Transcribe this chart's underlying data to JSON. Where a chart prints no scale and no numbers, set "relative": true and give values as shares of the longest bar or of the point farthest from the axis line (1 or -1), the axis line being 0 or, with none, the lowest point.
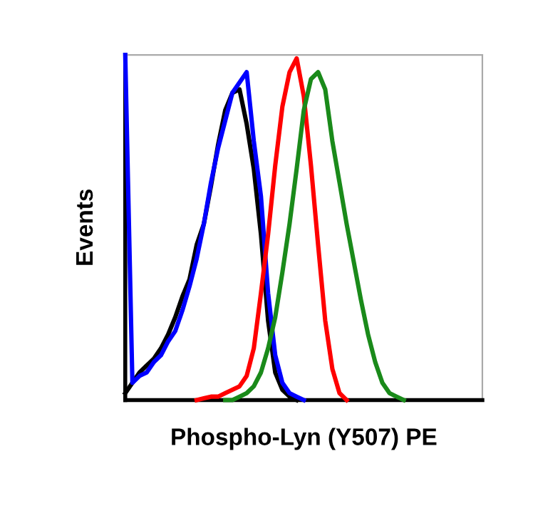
{
  "chart_data": {
    "type": "line",
    "relative": true,
    "xlabel": "Phospho-Lyn (Y507) PE",
    "ylabel": "Events",
    "marker": "none",
    "line_style": "solid",
    "categories": [
      null,
      null,
      null,
      null,
      null,
      null,
      null,
      null,
      null,
      null,
      null,
      null,
      null,
      null,
      null,
      null,
      null,
      null,
      null,
      null,
      null,
      null,
      null,
      null,
      null,
      null,
      null,
      null,
      null,
      null,
      null,
      null,
      null,
      null,
      null,
      null,
      null,
      null,
      null,
      null,
      null,
      null,
      null,
      null,
      null,
      null,
      null,
      null,
      null,
      null,
      null
    ],
    "series": [
      {
        "color": "#000000",
        "values": [
          0.02,
          0.05,
          0.08,
          0.1,
          0.12,
          0.15,
          0.19,
          0.24,
          0.3,
          0.35,
          0.45,
          0.51,
          0.62,
          0.74,
          0.84,
          0.89,
          0.9,
          0.8,
          0.67,
          0.48,
          0.23,
          0.08,
          0.03,
          0.01,
          0,
          null,
          null,
          null,
          null,
          null,
          null,
          null,
          null,
          null,
          null,
          null,
          null,
          null,
          null,
          null,
          null,
          null,
          null,
          null,
          null,
          null,
          null,
          null,
          null,
          null,
          null
        ]
      },
      {
        "color": "#0000ff",
        "values": [
          1.0,
          0.05,
          0.07,
          0.08,
          0.11,
          0.13,
          0.17,
          0.2,
          0.26,
          0.33,
          0.41,
          0.51,
          0.63,
          0.73,
          0.81,
          0.89,
          0.92,
          0.95,
          0.75,
          0.59,
          0.31,
          0.13,
          0.05,
          0.02,
          0.01,
          0,
          null,
          null,
          null,
          null,
          null,
          null,
          null,
          null,
          null,
          null,
          null,
          null,
          null,
          null,
          null,
          null,
          null,
          null,
          null,
          null,
          null,
          null,
          null,
          null,
          null
        ]
      },
      {
        "color": "#ff0000",
        "values": [
          null,
          null,
          null,
          null,
          null,
          null,
          null,
          null,
          null,
          null,
          0,
          0.005,
          0.01,
          0.01,
          0.02,
          0.03,
          0.04,
          0.07,
          0.15,
          0.31,
          0.48,
          0.68,
          0.85,
          0.95,
          0.99,
          0.88,
          0.68,
          0.45,
          0.23,
          0.09,
          0.02,
          0,
          null,
          null,
          null,
          null,
          null,
          null,
          null,
          null,
          null,
          null,
          null,
          null,
          null,
          null,
          null,
          null,
          null,
          null,
          null
        ]
      },
      {
        "color": "#1a8a1a",
        "values": [
          null,
          null,
          null,
          null,
          null,
          null,
          null,
          null,
          null,
          null,
          null,
          null,
          null,
          null,
          0,
          0,
          0.01,
          0.02,
          0.04,
          0.08,
          0.15,
          0.24,
          0.37,
          0.51,
          0.67,
          0.84,
          0.93,
          0.95,
          0.9,
          0.75,
          0.63,
          0.51,
          0.4,
          0.29,
          0.19,
          0.11,
          0.05,
          0.02,
          0.01,
          0,
          null,
          null,
          null,
          null,
          null,
          null,
          null,
          null,
          null,
          null,
          null
        ]
      }
    ]
  }
}
